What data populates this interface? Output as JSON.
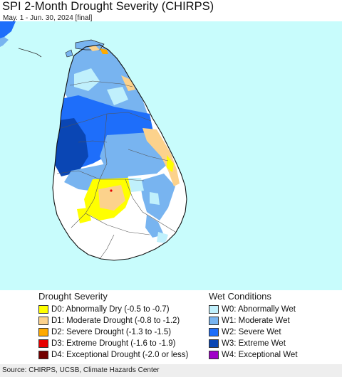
{
  "title": "SPI 2-Month Drought Severity (CHIRPS)",
  "subtitle": "May. 1 - Jun. 30, 2024 [final]",
  "colors": {
    "sea": "#c8fcfc",
    "land_normal": "#ffffff",
    "D0": "#ffff00",
    "D1": "#fcd28c",
    "D2": "#ffaa00",
    "D3": "#e60000",
    "D4": "#730000",
    "W0": "#c0f0fc",
    "W1": "#78b4f0",
    "W2": "#1e6efa",
    "W3": "#0a46b4",
    "W4": "#a000c8"
  },
  "legend": {
    "drought_title": "Drought Severity",
    "wet_title": "Wet Conditions",
    "drought_items": [
      {
        "code": "D0",
        "label": "D0: Abnormally Dry (-0.5 to -0.7)",
        "color": "#ffff00"
      },
      {
        "code": "D1",
        "label": "D1: Moderate Drought (-0.8 to -1.2)",
        "color": "#fcd28c"
      },
      {
        "code": "D2",
        "label": "D2: Severe Drought (-1.3 to -1.5)",
        "color": "#ffaa00"
      },
      {
        "code": "D3",
        "label": "D3: Extreme Drought (-1.6 to -1.9)",
        "color": "#e60000"
      },
      {
        "code": "D4",
        "label": "D4: Exceptional Drought (-2.0 or less)",
        "color": "#730000"
      }
    ],
    "wet_items": [
      {
        "code": "W0",
        "label": "W0: Abnormally Wet",
        "color": "#c0f0fc"
      },
      {
        "code": "W1",
        "label": "W1: Moderate Wet",
        "color": "#78b4f0"
      },
      {
        "code": "W2",
        "label": "W2: Severe Wet",
        "color": "#1e6efa"
      },
      {
        "code": "W3",
        "label": "W3: Extreme Wet",
        "color": "#0a46b4"
      },
      {
        "code": "W4",
        "label": "W4: Exceptional Wet",
        "color": "#a000c8"
      }
    ]
  },
  "source": "Source: CHIRPS, UCSB, Climate Hazards Center"
}
